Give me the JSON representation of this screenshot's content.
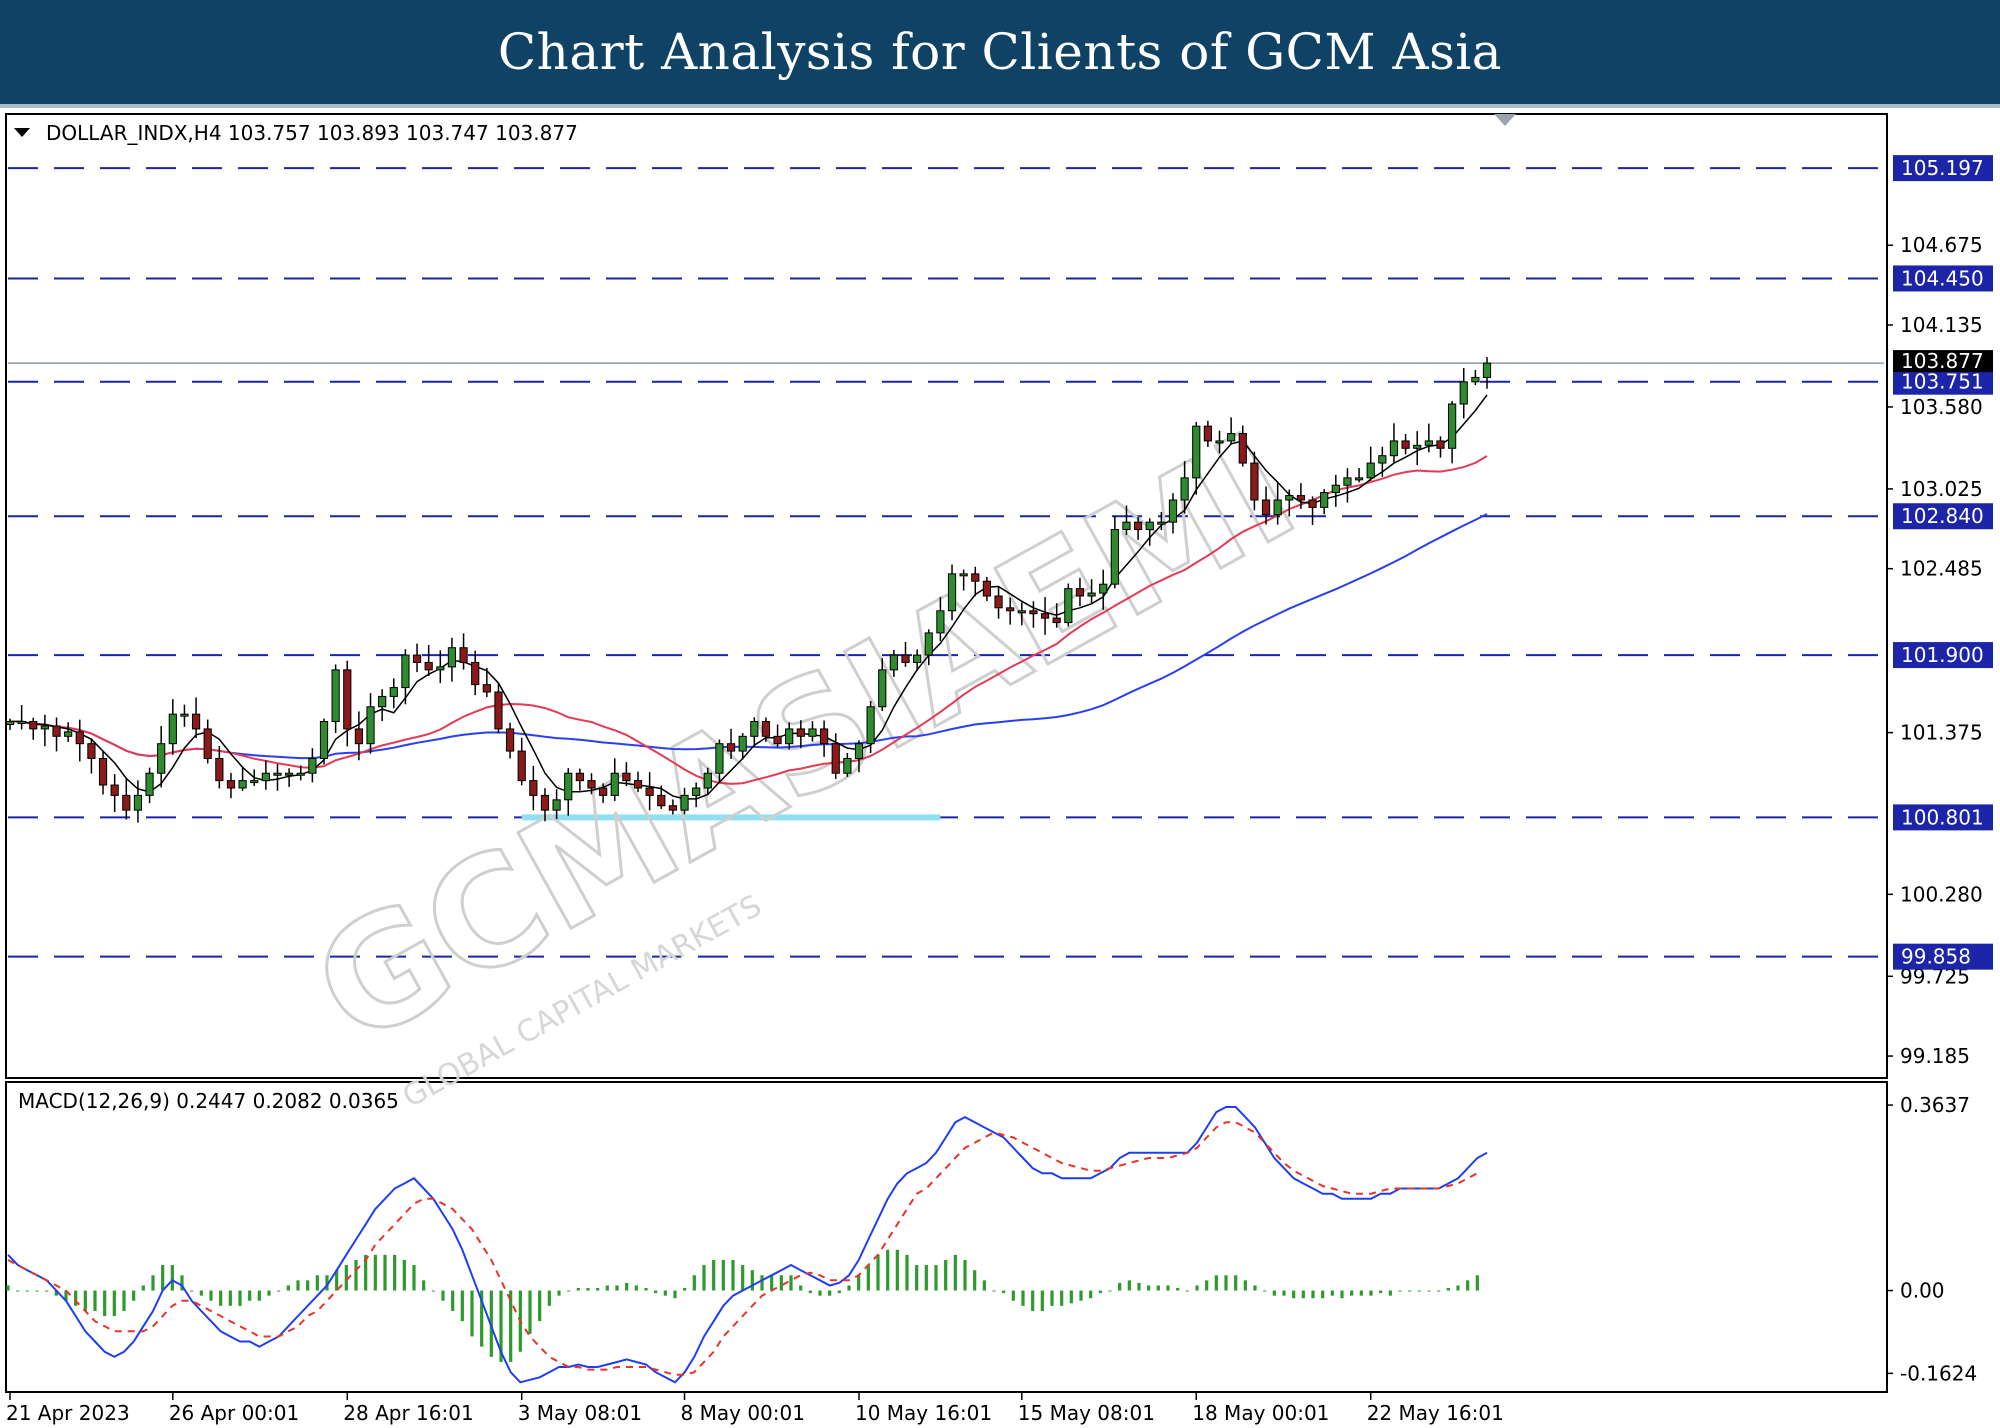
{
  "banner": {
    "title": "Chart Analysis for Clients of GCM Asia"
  },
  "colors": {
    "banner_bg": "#0f4264",
    "level_line": "#1c24a8",
    "level_label_bg": "#1c24a8",
    "bull_candle": "#2e8b2e",
    "bear_candle": "#8b1a1a",
    "ma_fast": "#000000",
    "ma_mid": "#e23b55",
    "ma_slow": "#2a3ff0",
    "macd_line": "#1f3ef0",
    "signal_line": "#e8332a",
    "histogram": "#2e9a2e",
    "support_zone": "#8fe0f0"
  },
  "watermark": {
    "main": "GCMASIAEMI",
    "sub": "GLOBAL CAPITAL MARKETS"
  },
  "chart_data": {
    "type": "candlestick",
    "symbol_header": "DOLLAR_INDX,H4  103.757 103.893 103.747 103.877",
    "price_axis_ticks": [
      "104.675",
      "104.135",
      "103.580",
      "103.025",
      "102.485",
      "101.375",
      "100.280",
      "99.725",
      "99.185"
    ],
    "ylim": [
      99.05,
      105.55
    ],
    "current_price": {
      "value": 103.877,
      "label": "103.877"
    },
    "levels": [
      {
        "value": 105.197,
        "label": "105.197"
      },
      {
        "value": 104.45,
        "label": "104.450"
      },
      {
        "value": 103.751,
        "label": "103.751"
      },
      {
        "value": 102.84,
        "label": "102.840"
      },
      {
        "value": 101.9,
        "label": "101.900"
      },
      {
        "value": 100.801,
        "label": "100.801"
      },
      {
        "value": 99.858,
        "label": "99.858"
      }
    ],
    "support_zone": {
      "value": 100.801,
      "x_from": 44,
      "x_to": 80
    },
    "time_axis_labels": [
      {
        "index": 0,
        "label": "21 Apr 2023"
      },
      {
        "index": 14,
        "label": "26 Apr 00:01"
      },
      {
        "index": 29,
        "label": "28 Apr 16:01"
      },
      {
        "index": 44,
        "label": "3 May 08:01"
      },
      {
        "index": 58,
        "label": "8 May 00:01"
      },
      {
        "index": 73,
        "label": "10 May 16:01"
      },
      {
        "index": 87,
        "label": "15 May 08:01"
      },
      {
        "index": 102,
        "label": "18 May 00:01"
      },
      {
        "index": 117,
        "label": "22 May 16:01"
      }
    ],
    "close": [
      101.45,
      101.45,
      101.4,
      101.42,
      101.35,
      101.38,
      101.3,
      101.2,
      101.02,
      100.95,
      100.85,
      100.95,
      101.1,
      101.3,
      101.5,
      101.5,
      101.4,
      101.2,
      101.05,
      101.0,
      101.05,
      101.05,
      101.1,
      101.1,
      101.1,
      101.1,
      101.2,
      101.45,
      101.8,
      101.4,
      101.3,
      101.55,
      101.62,
      101.68,
      101.9,
      101.85,
      101.8,
      101.82,
      101.95,
      101.85,
      101.7,
      101.65,
      101.4,
      101.25,
      101.05,
      100.95,
      100.85,
      100.92,
      101.1,
      101.05,
      101.0,
      100.95,
      101.1,
      101.05,
      101.0,
      100.95,
      100.88,
      100.85,
      100.95,
      101.0,
      101.1,
      101.3,
      101.25,
      101.35,
      101.45,
      101.35,
      101.3,
      101.4,
      101.35,
      101.4,
      101.3,
      101.1,
      101.2,
      101.3,
      101.55,
      101.8,
      101.9,
      101.85,
      101.9,
      102.05,
      102.2,
      102.45,
      102.45,
      102.4,
      102.3,
      102.22,
      102.2,
      102.2,
      102.18,
      102.15,
      102.12,
      102.35,
      102.3,
      102.32,
      102.38,
      102.75,
      102.8,
      102.75,
      102.8,
      102.8,
      102.95,
      103.1,
      103.45,
      103.35,
      103.35,
      103.4,
      103.2,
      102.95,
      102.85,
      102.95,
      102.98,
      102.95,
      102.9,
      103.0,
      103.05,
      103.1,
      103.1,
      103.2,
      103.25,
      103.35,
      103.3,
      103.32,
      103.35,
      103.3,
      103.6,
      103.75,
      103.78,
      103.877
    ],
    "ma_fast_label": "",
    "macd": {
      "header": "MACD(12,26,9) 0.2447 0.2082 0.0365",
      "axis_ticks": [
        {
          "value": 0.3637,
          "label": "0.3637"
        },
        {
          "value": 0.0,
          "label": "0.00"
        },
        {
          "value": -0.1624,
          "label": "-0.1624"
        }
      ],
      "ylim": [
        -0.195,
        0.405
      ],
      "macd_line": [
        0.07,
        0.05,
        0.04,
        0.03,
        0.02,
        0.0,
        -0.02,
        -0.05,
        -0.08,
        -0.1,
        -0.12,
        -0.13,
        -0.12,
        -0.1,
        -0.07,
        -0.04,
        0.0,
        0.02,
        0.01,
        -0.02,
        -0.04,
        -0.06,
        -0.08,
        -0.09,
        -0.1,
        -0.1,
        -0.11,
        -0.1,
        -0.09,
        -0.07,
        -0.05,
        -0.03,
        -0.01,
        0.01,
        0.04,
        0.07,
        0.1,
        0.13,
        0.16,
        0.18,
        0.2,
        0.21,
        0.22,
        0.2,
        0.18,
        0.15,
        0.12,
        0.08,
        0.03,
        -0.02,
        -0.07,
        -0.12,
        -0.16,
        -0.18,
        -0.175,
        -0.17,
        -0.16,
        -0.15,
        -0.15,
        -0.145,
        -0.15,
        -0.15,
        -0.145,
        -0.14,
        -0.135,
        -0.14,
        -0.145,
        -0.16,
        -0.17,
        -0.18,
        -0.16,
        -0.13,
        -0.09,
        -0.06,
        -0.03,
        -0.01,
        0.0,
        0.01,
        0.02,
        0.03,
        0.04,
        0.05,
        0.04,
        0.03,
        0.02,
        0.01,
        0.015,
        0.03,
        0.06,
        0.1,
        0.14,
        0.18,
        0.21,
        0.23,
        0.24,
        0.25,
        0.27,
        0.3,
        0.33,
        0.34,
        0.33,
        0.32,
        0.31,
        0.3,
        0.28,
        0.26,
        0.24,
        0.23,
        0.23,
        0.22,
        0.22,
        0.22,
        0.22,
        0.23,
        0.24,
        0.26,
        0.27,
        0.27,
        0.27,
        0.27,
        0.27,
        0.27,
        0.27,
        0.29,
        0.32,
        0.35,
        0.36,
        0.36,
        0.34,
        0.32,
        0.29,
        0.26,
        0.24,
        0.22,
        0.21,
        0.2,
        0.19,
        0.19,
        0.18,
        0.18,
        0.18,
        0.18,
        0.19,
        0.19,
        0.2,
        0.2,
        0.2,
        0.2,
        0.2,
        0.21,
        0.22,
        0.24,
        0.26,
        0.27
      ],
      "signal_line": [
        0.06,
        0.05,
        0.04,
        0.03,
        0.02,
        0.01,
        0.0,
        -0.02,
        -0.04,
        -0.06,
        -0.07,
        -0.08,
        -0.08,
        -0.08,
        -0.08,
        -0.07,
        -0.05,
        -0.03,
        -0.02,
        -0.02,
        -0.03,
        -0.04,
        -0.05,
        -0.06,
        -0.07,
        -0.08,
        -0.09,
        -0.09,
        -0.09,
        -0.08,
        -0.07,
        -0.05,
        -0.04,
        -0.02,
        0.0,
        0.02,
        0.04,
        0.06,
        0.09,
        0.11,
        0.13,
        0.15,
        0.17,
        0.18,
        0.18,
        0.17,
        0.16,
        0.14,
        0.12,
        0.09,
        0.06,
        0.02,
        -0.02,
        -0.06,
        -0.09,
        -0.11,
        -0.13,
        -0.14,
        -0.15,
        -0.15,
        -0.155,
        -0.155,
        -0.155,
        -0.15,
        -0.15,
        -0.15,
        -0.15,
        -0.155,
        -0.16,
        -0.165,
        -0.165,
        -0.16,
        -0.14,
        -0.12,
        -0.09,
        -0.07,
        -0.05,
        -0.03,
        -0.01,
        0.0,
        0.01,
        0.02,
        0.03,
        0.035,
        0.03,
        0.02,
        0.02,
        0.02,
        0.03,
        0.05,
        0.07,
        0.1,
        0.13,
        0.16,
        0.19,
        0.2,
        0.22,
        0.24,
        0.26,
        0.28,
        0.29,
        0.3,
        0.31,
        0.305,
        0.3,
        0.29,
        0.28,
        0.27,
        0.26,
        0.25,
        0.245,
        0.24,
        0.235,
        0.235,
        0.24,
        0.245,
        0.25,
        0.255,
        0.26,
        0.26,
        0.26,
        0.265,
        0.27,
        0.28,
        0.3,
        0.32,
        0.33,
        0.33,
        0.32,
        0.31,
        0.29,
        0.27,
        0.25,
        0.235,
        0.225,
        0.215,
        0.205,
        0.2,
        0.195,
        0.19,
        0.19,
        0.19,
        0.195,
        0.2,
        0.2,
        0.2,
        0.2,
        0.2,
        0.2,
        0.205,
        0.21,
        0.22,
        0.23
      ]
    }
  }
}
